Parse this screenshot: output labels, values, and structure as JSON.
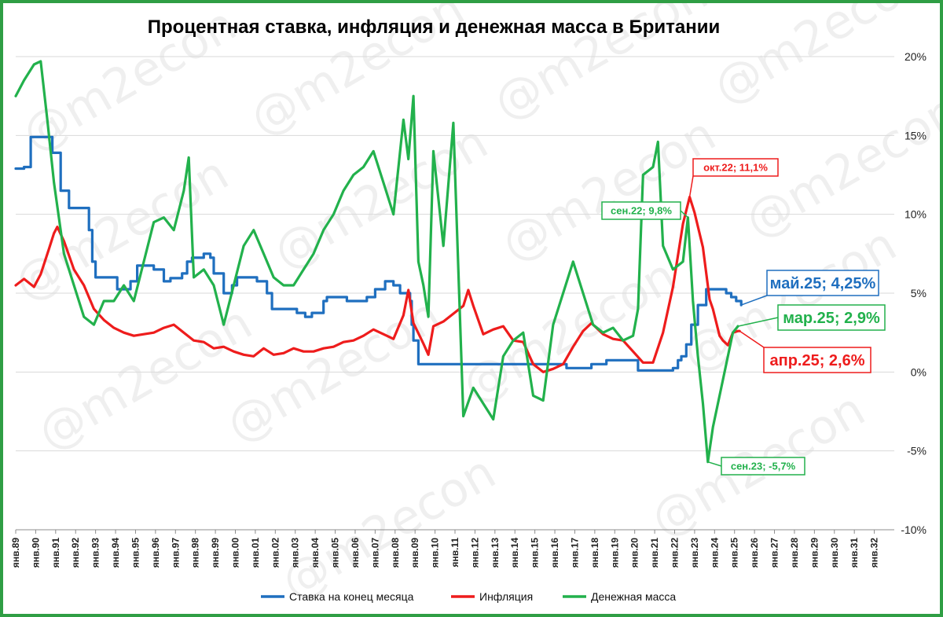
{
  "chart_data": {
    "type": "line",
    "title": "Процентная ставка, инфляция и денежная масса в Британии",
    "watermark": "@m2econ",
    "x_start": "1989-01",
    "x_end": "2032-12",
    "x_ticks": [
      "янв.89",
      "янв.90",
      "янв.91",
      "янв.92",
      "янв.93",
      "янв.94",
      "янв.95",
      "янв.96",
      "янв.97",
      "янв.98",
      "янв.99",
      "янв.00",
      "янв.01",
      "янв.02",
      "янв.03",
      "янв.04",
      "янв.05",
      "янв.06",
      "янв.07",
      "янв.08",
      "янв.09",
      "янв.10",
      "янв.11",
      "янв.12",
      "янв.13",
      "янв.14",
      "янв.15",
      "янв.16",
      "янв.17",
      "янв.18",
      "янв.19",
      "янв.20",
      "янв.21",
      "янв.22",
      "янв.23",
      "янв.24",
      "янв.25",
      "янв.26",
      "янв.27",
      "янв.28",
      "янв.29",
      "янв.30",
      "янв.31",
      "янв.32"
    ],
    "y_axis": {
      "position": "right",
      "min": -10,
      "max": 20,
      "step": 5,
      "tick_labels": [
        "-10%",
        "-5%",
        "0%",
        "5%",
        "10%",
        "15%",
        "20%"
      ]
    },
    "grid": true,
    "legend_position": "bottom",
    "series": [
      {
        "name": "Ставка на конец месяца",
        "color": "#1f6fbf",
        "points": [
          [
            "1989-01",
            12.9
          ],
          [
            "1989-06",
            13.0
          ],
          [
            "1989-10",
            14.9
          ],
          [
            "1990-09",
            14.9
          ],
          [
            "1990-11",
            13.9
          ],
          [
            "1991-04",
            11.5
          ],
          [
            "1991-09",
            10.4
          ],
          [
            "1992-05",
            10.4
          ],
          [
            "1992-09",
            9.0
          ],
          [
            "1992-11",
            7.0
          ],
          [
            "1993-01",
            6.0
          ],
          [
            "1994-02",
            5.25
          ],
          [
            "1994-10",
            5.75
          ],
          [
            "1995-02",
            6.75
          ],
          [
            "1995-12",
            6.5
          ],
          [
            "1996-06",
            5.75
          ],
          [
            "1996-10",
            5.95
          ],
          [
            "1997-05",
            6.25
          ],
          [
            "1997-08",
            7.0
          ],
          [
            "1997-11",
            7.25
          ],
          [
            "1998-06",
            7.5
          ],
          [
            "1998-10",
            7.25
          ],
          [
            "1998-12",
            6.25
          ],
          [
            "1999-06",
            5.0
          ],
          [
            "1999-11",
            5.5
          ],
          [
            "2000-02",
            6.0
          ],
          [
            "2001-02",
            5.75
          ],
          [
            "2001-08",
            5.0
          ],
          [
            "2001-11",
            4.0
          ],
          [
            "2003-02",
            3.75
          ],
          [
            "2003-07",
            3.5
          ],
          [
            "2003-11",
            3.75
          ],
          [
            "2004-06",
            4.5
          ],
          [
            "2004-08",
            4.75
          ],
          [
            "2005-08",
            4.5
          ],
          [
            "2006-08",
            4.75
          ],
          [
            "2007-01",
            5.25
          ],
          [
            "2007-07",
            5.75
          ],
          [
            "2007-12",
            5.5
          ],
          [
            "2008-04",
            5.0
          ],
          [
            "2008-10",
            4.5
          ],
          [
            "2008-11",
            3.0
          ],
          [
            "2008-12",
            2.0
          ],
          [
            "2009-03",
            0.5
          ],
          [
            "2016-07",
            0.5
          ],
          [
            "2016-08",
            0.25
          ],
          [
            "2017-11",
            0.5
          ],
          [
            "2018-08",
            0.75
          ],
          [
            "2020-02",
            0.75
          ],
          [
            "2020-03",
            0.1
          ],
          [
            "2021-11",
            0.1
          ],
          [
            "2021-12",
            0.25
          ],
          [
            "2022-03",
            0.75
          ],
          [
            "2022-05",
            1.0
          ],
          [
            "2022-08",
            1.75
          ],
          [
            "2022-11",
            3.0
          ],
          [
            "2023-03",
            4.25
          ],
          [
            "2023-08",
            5.25
          ],
          [
            "2024-07",
            5.25
          ],
          [
            "2024-08",
            5.0
          ],
          [
            "2024-11",
            4.75
          ],
          [
            "2025-02",
            4.5
          ],
          [
            "2025-05",
            4.25
          ]
        ]
      },
      {
        "name": "Инфляция",
        "color": "#ee1c1c",
        "points": [
          [
            "1989-01",
            5.5
          ],
          [
            "1989-06",
            5.9
          ],
          [
            "1989-12",
            5.4
          ],
          [
            "1990-04",
            6.2
          ],
          [
            "1990-09",
            7.8
          ],
          [
            "1990-12",
            8.8
          ],
          [
            "1991-02",
            9.2
          ],
          [
            "1991-06",
            8.3
          ],
          [
            "1991-12",
            6.5
          ],
          [
            "1992-06",
            5.5
          ],
          [
            "1992-12",
            4.0
          ],
          [
            "1993-06",
            3.3
          ],
          [
            "1993-12",
            2.8
          ],
          [
            "1994-06",
            2.5
          ],
          [
            "1994-12",
            2.3
          ],
          [
            "1995-06",
            2.4
          ],
          [
            "1995-12",
            2.5
          ],
          [
            "1996-06",
            2.8
          ],
          [
            "1996-12",
            3.0
          ],
          [
            "1997-06",
            2.5
          ],
          [
            "1997-12",
            2.0
          ],
          [
            "1998-06",
            1.9
          ],
          [
            "1998-12",
            1.5
          ],
          [
            "1999-06",
            1.6
          ],
          [
            "1999-12",
            1.3
          ],
          [
            "2000-06",
            1.1
          ],
          [
            "2000-12",
            1.0
          ],
          [
            "2001-06",
            1.5
          ],
          [
            "2001-12",
            1.1
          ],
          [
            "2002-06",
            1.2
          ],
          [
            "2002-12",
            1.5
          ],
          [
            "2003-06",
            1.3
          ],
          [
            "2003-12",
            1.3
          ],
          [
            "2004-06",
            1.5
          ],
          [
            "2004-12",
            1.6
          ],
          [
            "2005-06",
            1.9
          ],
          [
            "2005-12",
            2.0
          ],
          [
            "2006-06",
            2.3
          ],
          [
            "2006-12",
            2.7
          ],
          [
            "2007-06",
            2.4
          ],
          [
            "2007-12",
            2.1
          ],
          [
            "2008-06",
            3.6
          ],
          [
            "2008-09",
            5.2
          ],
          [
            "2008-12",
            3.1
          ],
          [
            "2009-06",
            1.8
          ],
          [
            "2009-09",
            1.1
          ],
          [
            "2009-12",
            2.9
          ],
          [
            "2010-06",
            3.2
          ],
          [
            "2010-12",
            3.7
          ],
          [
            "2011-06",
            4.2
          ],
          [
            "2011-09",
            5.2
          ],
          [
            "2011-12",
            4.2
          ],
          [
            "2012-06",
            2.4
          ],
          [
            "2012-12",
            2.7
          ],
          [
            "2013-06",
            2.9
          ],
          [
            "2013-12",
            2.0
          ],
          [
            "2014-06",
            1.9
          ],
          [
            "2014-12",
            0.5
          ],
          [
            "2015-06",
            0.0
          ],
          [
            "2015-12",
            0.2
          ],
          [
            "2016-06",
            0.5
          ],
          [
            "2016-12",
            1.6
          ],
          [
            "2017-06",
            2.6
          ],
          [
            "2017-11",
            3.1
          ],
          [
            "2018-06",
            2.4
          ],
          [
            "2018-12",
            2.1
          ],
          [
            "2019-06",
            2.0
          ],
          [
            "2019-12",
            1.3
          ],
          [
            "2020-06",
            0.6
          ],
          [
            "2020-12",
            0.6
          ],
          [
            "2021-06",
            2.5
          ],
          [
            "2021-12",
            5.4
          ],
          [
            "2022-06",
            9.4
          ],
          [
            "2022-10",
            11.1
          ],
          [
            "2023-01",
            10.1
          ],
          [
            "2023-06",
            7.9
          ],
          [
            "2023-10",
            4.6
          ],
          [
            "2023-12",
            4.0
          ],
          [
            "2024-04",
            2.3
          ],
          [
            "2024-06",
            2.0
          ],
          [
            "2024-09",
            1.7
          ],
          [
            "2024-12",
            2.5
          ],
          [
            "2025-03",
            2.6
          ],
          [
            "2025-04",
            2.6
          ]
        ]
      },
      {
        "name": "Денежная масса",
        "color": "#22b14c",
        "points": [
          [
            "1989-01",
            17.5
          ],
          [
            "1989-06",
            18.5
          ],
          [
            "1989-12",
            19.5
          ],
          [
            "1990-04",
            19.7
          ],
          [
            "1990-08",
            16.0
          ],
          [
            "1990-12",
            12.0
          ],
          [
            "1991-06",
            7.5
          ],
          [
            "1991-12",
            5.5
          ],
          [
            "1992-06",
            3.5
          ],
          [
            "1992-12",
            3.0
          ],
          [
            "1993-06",
            4.5
          ],
          [
            "1993-12",
            4.5
          ],
          [
            "1994-06",
            5.5
          ],
          [
            "1994-12",
            4.5
          ],
          [
            "1995-06",
            7.0
          ],
          [
            "1995-12",
            9.5
          ],
          [
            "1996-06",
            9.8
          ],
          [
            "1996-12",
            9.0
          ],
          [
            "1997-06",
            11.5
          ],
          [
            "1997-09",
            13.6
          ],
          [
            "1997-12",
            6.0
          ],
          [
            "1998-06",
            6.5
          ],
          [
            "1998-12",
            5.5
          ],
          [
            "1999-06",
            3.0
          ],
          [
            "1999-12",
            5.5
          ],
          [
            "2000-06",
            8.0
          ],
          [
            "2000-12",
            9.0
          ],
          [
            "2001-06",
            7.5
          ],
          [
            "2001-12",
            6.0
          ],
          [
            "2002-06",
            5.5
          ],
          [
            "2002-12",
            5.5
          ],
          [
            "2003-06",
            6.5
          ],
          [
            "2003-12",
            7.5
          ],
          [
            "2004-06",
            9.0
          ],
          [
            "2004-12",
            10.0
          ],
          [
            "2005-06",
            11.5
          ],
          [
            "2005-12",
            12.5
          ],
          [
            "2006-06",
            13.0
          ],
          [
            "2006-12",
            14.0
          ],
          [
            "2007-06",
            12.0
          ],
          [
            "2007-12",
            10.0
          ],
          [
            "2008-06",
            16.0
          ],
          [
            "2008-09",
            13.5
          ],
          [
            "2008-12",
            17.5
          ],
          [
            "2009-03",
            7.0
          ],
          [
            "2009-06",
            5.5
          ],
          [
            "2009-09",
            3.5
          ],
          [
            "2009-12",
            14.0
          ],
          [
            "2010-06",
            8.0
          ],
          [
            "2010-12",
            15.8
          ],
          [
            "2011-06",
            -2.8
          ],
          [
            "2011-12",
            -1.0
          ],
          [
            "2012-06",
            -2.0
          ],
          [
            "2012-12",
            -3.0
          ],
          [
            "2013-06",
            1.0
          ],
          [
            "2013-12",
            2.0
          ],
          [
            "2014-06",
            2.5
          ],
          [
            "2014-12",
            -1.5
          ],
          [
            "2015-06",
            -1.8
          ],
          [
            "2015-12",
            3.0
          ],
          [
            "2016-06",
            5.0
          ],
          [
            "2016-12",
            7.0
          ],
          [
            "2017-06",
            5.0
          ],
          [
            "2017-12",
            3.0
          ],
          [
            "2018-06",
            2.5
          ],
          [
            "2018-12",
            2.8
          ],
          [
            "2019-06",
            2.0
          ],
          [
            "2019-12",
            2.3
          ],
          [
            "2020-03",
            4.0
          ],
          [
            "2020-06",
            12.5
          ],
          [
            "2020-12",
            13.0
          ],
          [
            "2021-03",
            14.6
          ],
          [
            "2021-06",
            8.0
          ],
          [
            "2021-12",
            6.5
          ],
          [
            "2022-06",
            7.0
          ],
          [
            "2022-09",
            9.8
          ],
          [
            "2022-12",
            4.5
          ],
          [
            "2023-03",
            1.0
          ],
          [
            "2023-06",
            -2.0
          ],
          [
            "2023-09",
            -5.7
          ],
          [
            "2023-12",
            -3.5
          ],
          [
            "2024-06",
            -0.5
          ],
          [
            "2024-12",
            2.5
          ],
          [
            "2025-03",
            2.9
          ]
        ]
      }
    ],
    "annotations": [
      {
        "text": "окт.22; 11,1%",
        "series": "Инфляция",
        "date": "2022-10",
        "value": 11.1,
        "color": "#ee1c1c"
      },
      {
        "text": "сен.22; 9,8%",
        "series": "Денежная масса",
        "date": "2022-09",
        "value": 9.8,
        "color": "#22b14c"
      },
      {
        "text": "сен.23; -5,7%",
        "series": "Денежная масса",
        "date": "2023-09",
        "value": -5.7,
        "color": "#22b14c"
      },
      {
        "text": "май.25; 4,25%",
        "series": "Ставка на конец месяца",
        "date": "2025-05",
        "value": 4.25,
        "color": "#1f6fbf"
      },
      {
        "text": "мар.25; 2,9%",
        "series": "Денежная масса",
        "date": "2025-03",
        "value": 2.9,
        "color": "#22b14c"
      },
      {
        "text": "апр.25; 2,6%",
        "series": "Инфляция",
        "date": "2025-04",
        "value": 2.6,
        "color": "#ee1c1c"
      }
    ]
  }
}
